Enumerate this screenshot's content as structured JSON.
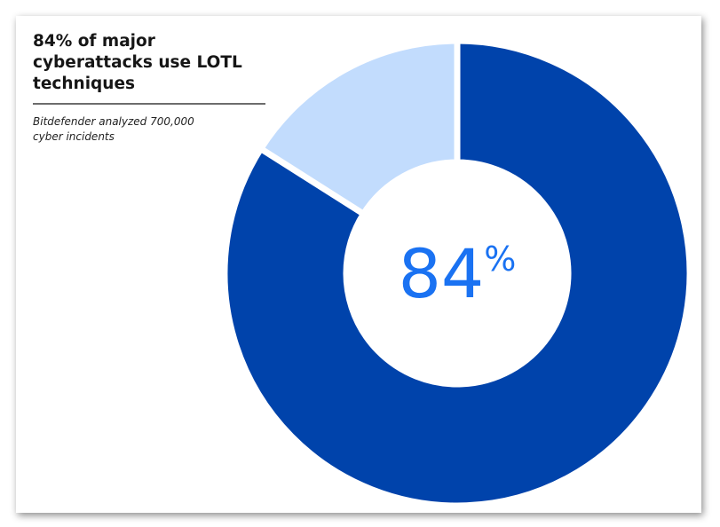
{
  "chart_data": {
    "type": "donut",
    "title": "84% of major cyberattacks use LOTL techniques",
    "subtitle": "Bitdefender analyzed 700,000 cyber incidents",
    "values": [
      84,
      16
    ],
    "value_labels": [
      "84%",
      null
    ],
    "colors": [
      "#0043ab",
      "#c2dcfd"
    ],
    "label_color": "#1a72f2"
  }
}
